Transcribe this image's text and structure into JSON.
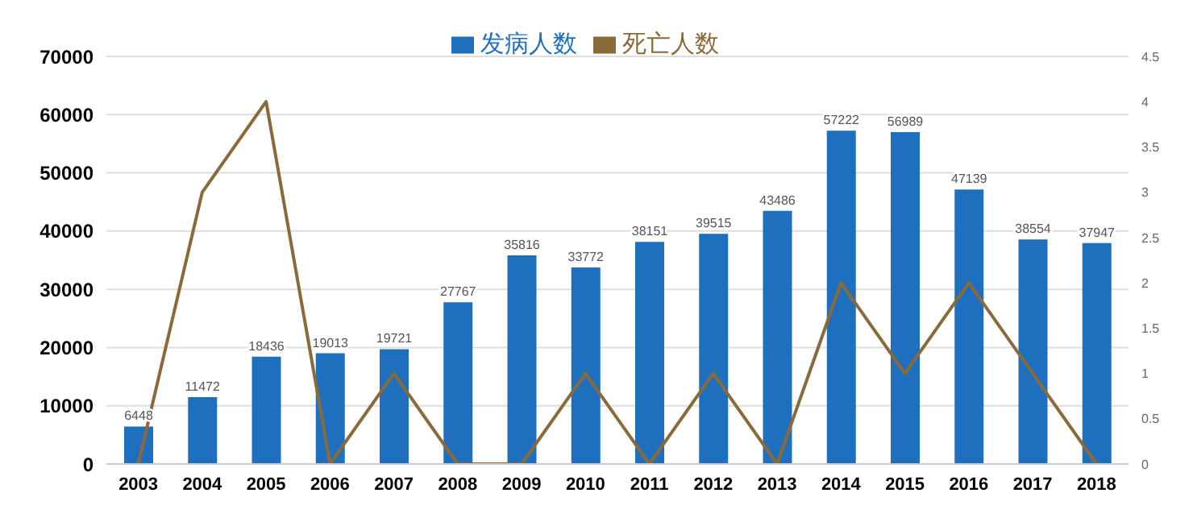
{
  "chart_data": {
    "type": "bar",
    "categories": [
      "2003",
      "2004",
      "2005",
      "2006",
      "2007",
      "2008",
      "2009",
      "2010",
      "2011",
      "2012",
      "2013",
      "2014",
      "2015",
      "2016",
      "2017",
      "2018"
    ],
    "series": [
      {
        "name": "发病人数",
        "color": "#1f6fbf",
        "values": [
          6448,
          11472,
          18436,
          19013,
          19721,
          27767,
          35816,
          33772,
          38151,
          39515,
          43486,
          57222,
          56989,
          47139,
          38554,
          37947
        ],
        "value_labels": [
          "6448",
          "11472",
          "18436",
          "19013",
          "19721",
          "27767",
          "35816",
          "33772",
          "38151",
          "39515",
          "43486",
          "57222",
          "56989",
          "47139",
          "38554",
          "37947"
        ]
      },
      {
        "name": "死亡人数",
        "type": "line",
        "axis": "y2",
        "color": "#8b6a3a",
        "values": [
          0,
          3,
          4,
          0,
          1,
          0,
          0,
          1,
          0,
          1,
          0,
          2,
          1,
          2,
          1,
          0
        ]
      }
    ],
    "ylim": [
      0,
      70000
    ],
    "yticks": [
      0,
      10000,
      20000,
      30000,
      40000,
      50000,
      60000,
      70000
    ],
    "y2lim": [
      0,
      4.5
    ],
    "y2ticks": [
      0,
      0.5,
      1,
      1.5,
      2,
      2.5,
      3,
      3.5,
      4,
      4.5
    ],
    "grid": "y",
    "legend": "top",
    "marker": "none",
    "line_style": "solid"
  }
}
